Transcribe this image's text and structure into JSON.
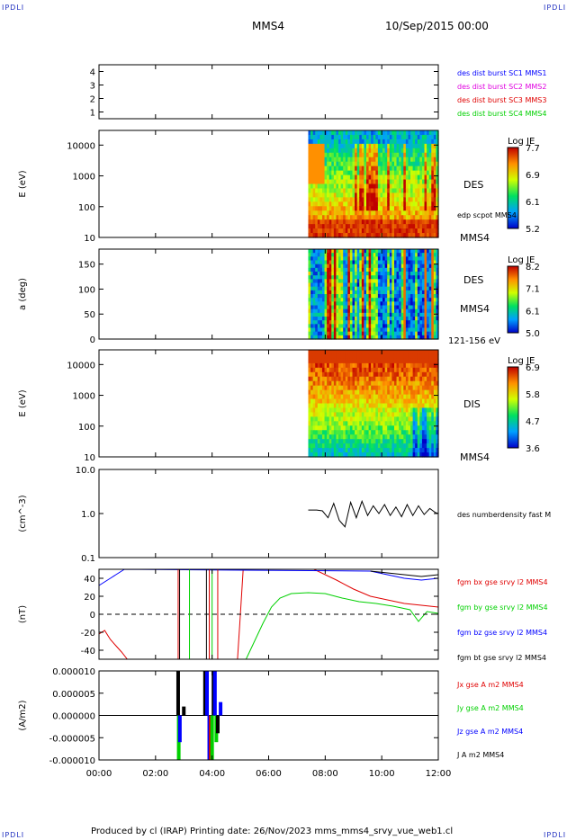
{
  "corner_label": "IPDLI",
  "header": {
    "spacecraft": "MMS4",
    "datetime": "10/Sep/2015 00:00"
  },
  "footer": "Produced by cl (IRAP)   Printing date: 26/Nov/2023   mms_mms4_srvy_vue_web1.cl",
  "colors": {
    "blue": "#0000ff",
    "magenta": "#e000e0",
    "red": "#e00000",
    "green": "#00d000",
    "black": "#000000"
  },
  "chart_data": [
    {
      "id": "burst",
      "type": "line",
      "ylim": [
        0.5,
        4.5
      ],
      "yticks": [
        "1",
        "2",
        "3",
        "4"
      ],
      "legend": [
        {
          "text": "des dist burst SC1 MMS1",
          "color": "#0000ff"
        },
        {
          "text": "des dist burst SC2 MMS2",
          "color": "#e000e0"
        },
        {
          "text": "des dist burst SC3 MMS3",
          "color": "#e00000"
        },
        {
          "text": "des dist burst SC4 MMS4",
          "color": "#00d000"
        }
      ]
    },
    {
      "id": "des_energy",
      "type": "heatmap",
      "ylabel": "E (eV)",
      "yscale": "log",
      "ylim": [
        10,
        30000
      ],
      "yticks": [
        "10",
        "100",
        "1000",
        "10000"
      ],
      "data_start_hour": 7.4,
      "right_labels": {
        "species": "DES",
        "note": "edp scpot MMS4",
        "sc": "MMS4"
      },
      "colorbar": {
        "title": "Log JE",
        "ticks": [
          "7.7",
          "6.9",
          "6.1",
          "5.2"
        ],
        "min": 5.2,
        "max": 7.7
      }
    },
    {
      "id": "des_pitch",
      "type": "heatmap",
      "ylabel": "a (deg)",
      "ylim": [
        0,
        180
      ],
      "yticks": [
        "0",
        "50",
        "100",
        "150"
      ],
      "data_start_hour": 7.4,
      "right_labels": {
        "species": "DES",
        "sc": "MMS4",
        "range": "121-156 eV"
      },
      "colorbar": {
        "title": "Log JE",
        "ticks": [
          "8.2",
          "7.1",
          "6.1",
          "5.0"
        ],
        "min": 5.0,
        "max": 8.2
      }
    },
    {
      "id": "dis_energy",
      "type": "heatmap",
      "ylabel": "E (eV)",
      "yscale": "log",
      "ylim": [
        10,
        30000
      ],
      "yticks": [
        "10",
        "100",
        "1000",
        "10000"
      ],
      "data_start_hour": 7.4,
      "right_labels": {
        "species": "DIS",
        "sc": "MMS4"
      },
      "colorbar": {
        "title": "Log JE",
        "ticks": [
          "6.9",
          "5.8",
          "4.7",
          "3.6"
        ],
        "min": 3.6,
        "max": 6.9
      }
    },
    {
      "id": "density",
      "type": "line",
      "ylabel": "(cm^-3)",
      "yscale": "log",
      "ylim": [
        0.1,
        10
      ],
      "yticks": [
        "0.1",
        "1.0",
        "10.0"
      ],
      "legend": [
        {
          "text": "des numberdensity fast M",
          "color": "#000000"
        }
      ],
      "series": [
        {
          "name": "des numberdensity fast M",
          "color": "#000000",
          "x": [
            7.4,
            7.7,
            7.9,
            8.1,
            8.3,
            8.5,
            8.7,
            8.9,
            9.1,
            9.3,
            9.5,
            9.7,
            9.9,
            10.1,
            10.3,
            10.5,
            10.7,
            10.9,
            11.1,
            11.3,
            11.5,
            11.7,
            11.9,
            12.0
          ],
          "y": [
            1.2,
            1.2,
            1.15,
            0.8,
            1.7,
            0.7,
            0.5,
            1.8,
            0.8,
            1.9,
            0.9,
            1.5,
            1.0,
            1.6,
            0.9,
            1.4,
            0.85,
            1.6,
            0.9,
            1.5,
            0.95,
            1.3,
            1.05,
            1.0
          ]
        }
      ]
    },
    {
      "id": "bfield",
      "type": "line",
      "ylabel": "(nT)",
      "ylim": [
        -50,
        50
      ],
      "yticks": [
        "-40",
        "-20",
        "0",
        "20",
        "40"
      ],
      "legend": [
        {
          "text": "fgm bx gse srvy l2 MMS4",
          "color": "#e00000"
        },
        {
          "text": "fgm by gse srvy l2 MMS4",
          "color": "#00d000"
        },
        {
          "text": "fgm bz gse srvy l2 MMS4",
          "color": "#0000ff"
        },
        {
          "text": "fgm bt gse srvy l2 MMS4",
          "color": "#000000"
        }
      ],
      "series": [
        {
          "name": "fgm bx gse srvy l2 MMS4",
          "color": "#e00000",
          "x": [
            0.0,
            0.2,
            0.4,
            0.6,
            0.8,
            1.0,
            4.9,
            5.0,
            5.1,
            7.6,
            8.4,
            9.0,
            9.6,
            10.2,
            10.8,
            11.4,
            12.0
          ],
          "y": [
            -22,
            -18,
            -28,
            -35,
            -42,
            -50,
            -50,
            0,
            50,
            50,
            38,
            28,
            20,
            16,
            12,
            10,
            8
          ]
        },
        {
          "name": "fgm by gse srvy l2 MMS4",
          "color": "#00d000",
          "x": [
            5.2,
            5.5,
            5.8,
            6.1,
            6.4,
            6.8,
            7.4,
            8.0,
            8.6,
            9.2,
            9.8,
            10.4,
            11.0,
            11.3,
            11.6,
            12.0
          ],
          "y": [
            -50,
            -30,
            -10,
            8,
            18,
            23,
            24,
            23,
            18,
            14,
            12,
            9,
            5,
            -8,
            3,
            1
          ]
        },
        {
          "name": "fgm bz gse srvy l2 MMS4",
          "color": "#0000ff",
          "x": [
            0.0,
            0.2,
            0.4,
            0.6,
            0.8,
            0.9,
            9.6,
            10.2,
            10.8,
            11.4,
            12.0
          ],
          "y": [
            32,
            36,
            40,
            44,
            48,
            50,
            48,
            44,
            40,
            38,
            40
          ]
        },
        {
          "name": "fgm bt gse srvy l2 MMS4",
          "color": "#000000",
          "x": [
            9.6,
            10.2,
            10.8,
            11.4,
            12.0
          ],
          "y": [
            48,
            46,
            44,
            42,
            44
          ]
        }
      ]
    },
    {
      "id": "current",
      "type": "line",
      "ylabel": "(A/m2)",
      "ylim": [
        -1e-05,
        1e-05
      ],
      "yticks": [
        "-0.000010",
        "-0.000005",
        "0.000000",
        "0.000005",
        "0.000010"
      ],
      "legend": [
        {
          "text": "Jx gse A m2 MMS4",
          "color": "#e00000"
        },
        {
          "text": "Jy gse A m2 MMS4",
          "color": "#00d000"
        },
        {
          "text": "Jz gse A m2 MMS4",
          "color": "#0000ff"
        },
        {
          "text": "J A m2 MMS4",
          "color": "#000000"
        }
      ],
      "xticks": [
        "00:00",
        "02:00",
        "04:00",
        "06:00",
        "08:00",
        "10:00",
        "12:00"
      ],
      "xlim": [
        0,
        12
      ]
    }
  ]
}
